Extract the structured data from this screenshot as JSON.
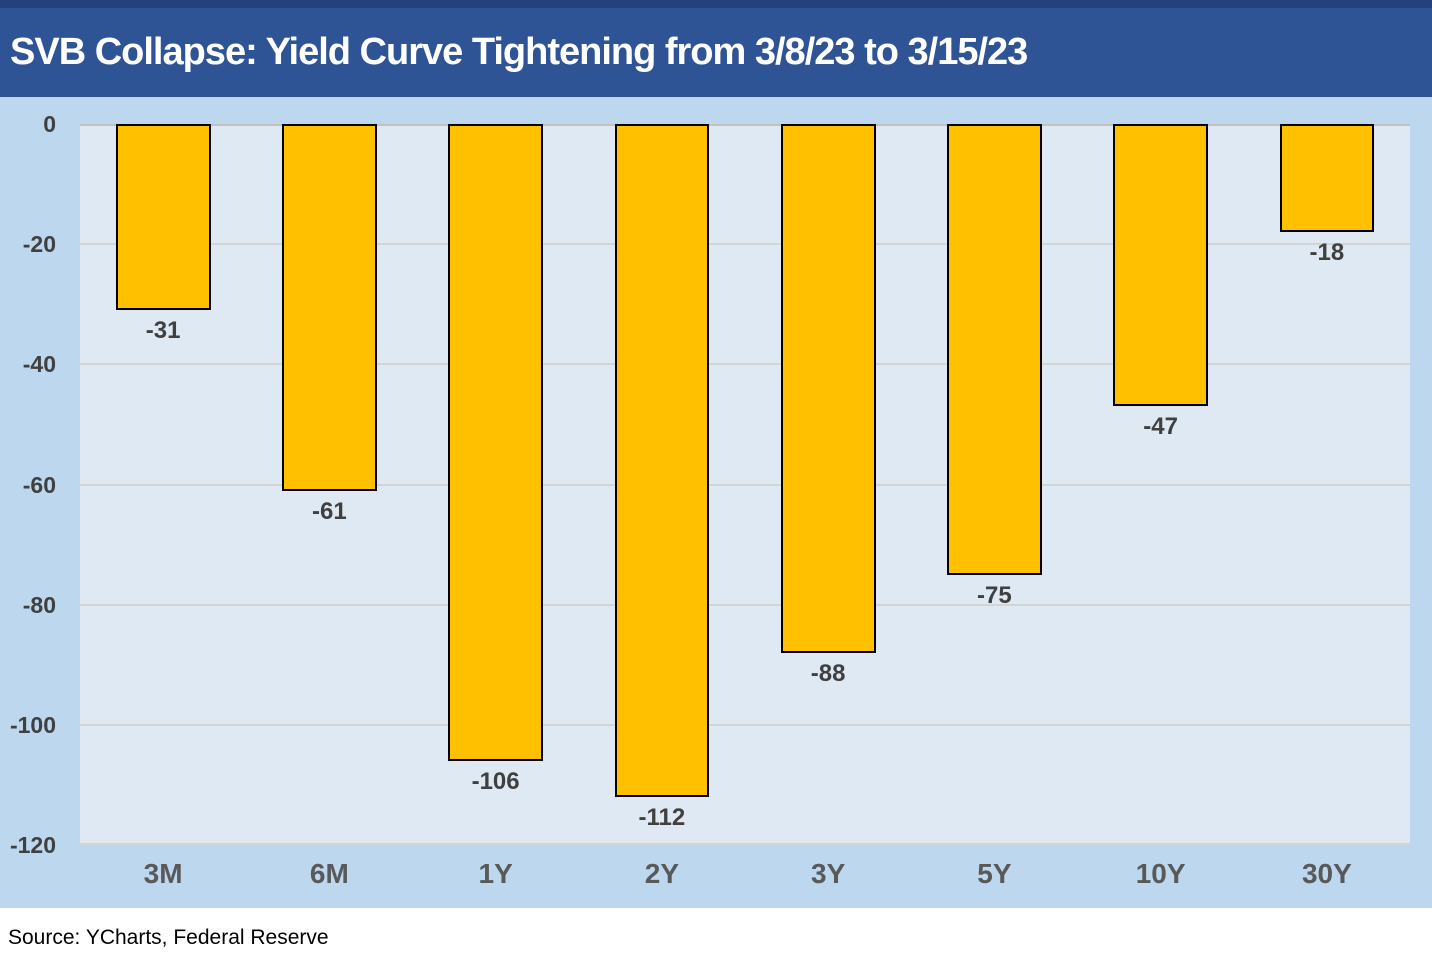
{
  "header": {
    "title": "SVB Collapse: Yield Curve Tightening from 3/8/23 to 3/15/23"
  },
  "chart_data": {
    "type": "bar",
    "title": "SVB Collapse: Yield Curve Tightening from 3/8/23 to 3/15/23",
    "categories": [
      "3M",
      "6M",
      "1Y",
      "2Y",
      "3Y",
      "5Y",
      "10Y",
      "30Y"
    ],
    "values": [
      -31,
      -61,
      -106,
      -112,
      -88,
      -75,
      -47,
      -18
    ],
    "data_labels": [
      "-31",
      "-61",
      "-106",
      "-112",
      "-88",
      "-75",
      "-47",
      "-18"
    ],
    "xlabel": "",
    "ylabel": "",
    "ylim": [
      -120,
      0
    ],
    "yticks": [
      0,
      -20,
      -40,
      -60,
      -80,
      -100,
      -120
    ],
    "grid": true,
    "legend": false,
    "bar_color": "#FFC000",
    "bar_border_color": "#000000"
  },
  "footer": {
    "source": "Source: YCharts, Federal Reserve"
  },
  "colors": {
    "header_bg": "#2F5496",
    "header_top": "#24417E",
    "chart_bg": "#BDD7EE",
    "plot_bg": "#DFE9F4",
    "gridline": "#D4D4D4",
    "tick_label": "#404040",
    "data_label": "#404040",
    "x_label": "#595959",
    "bar_fill": "#FFC000",
    "bar_border": "#000000",
    "source_text": "#000000"
  }
}
